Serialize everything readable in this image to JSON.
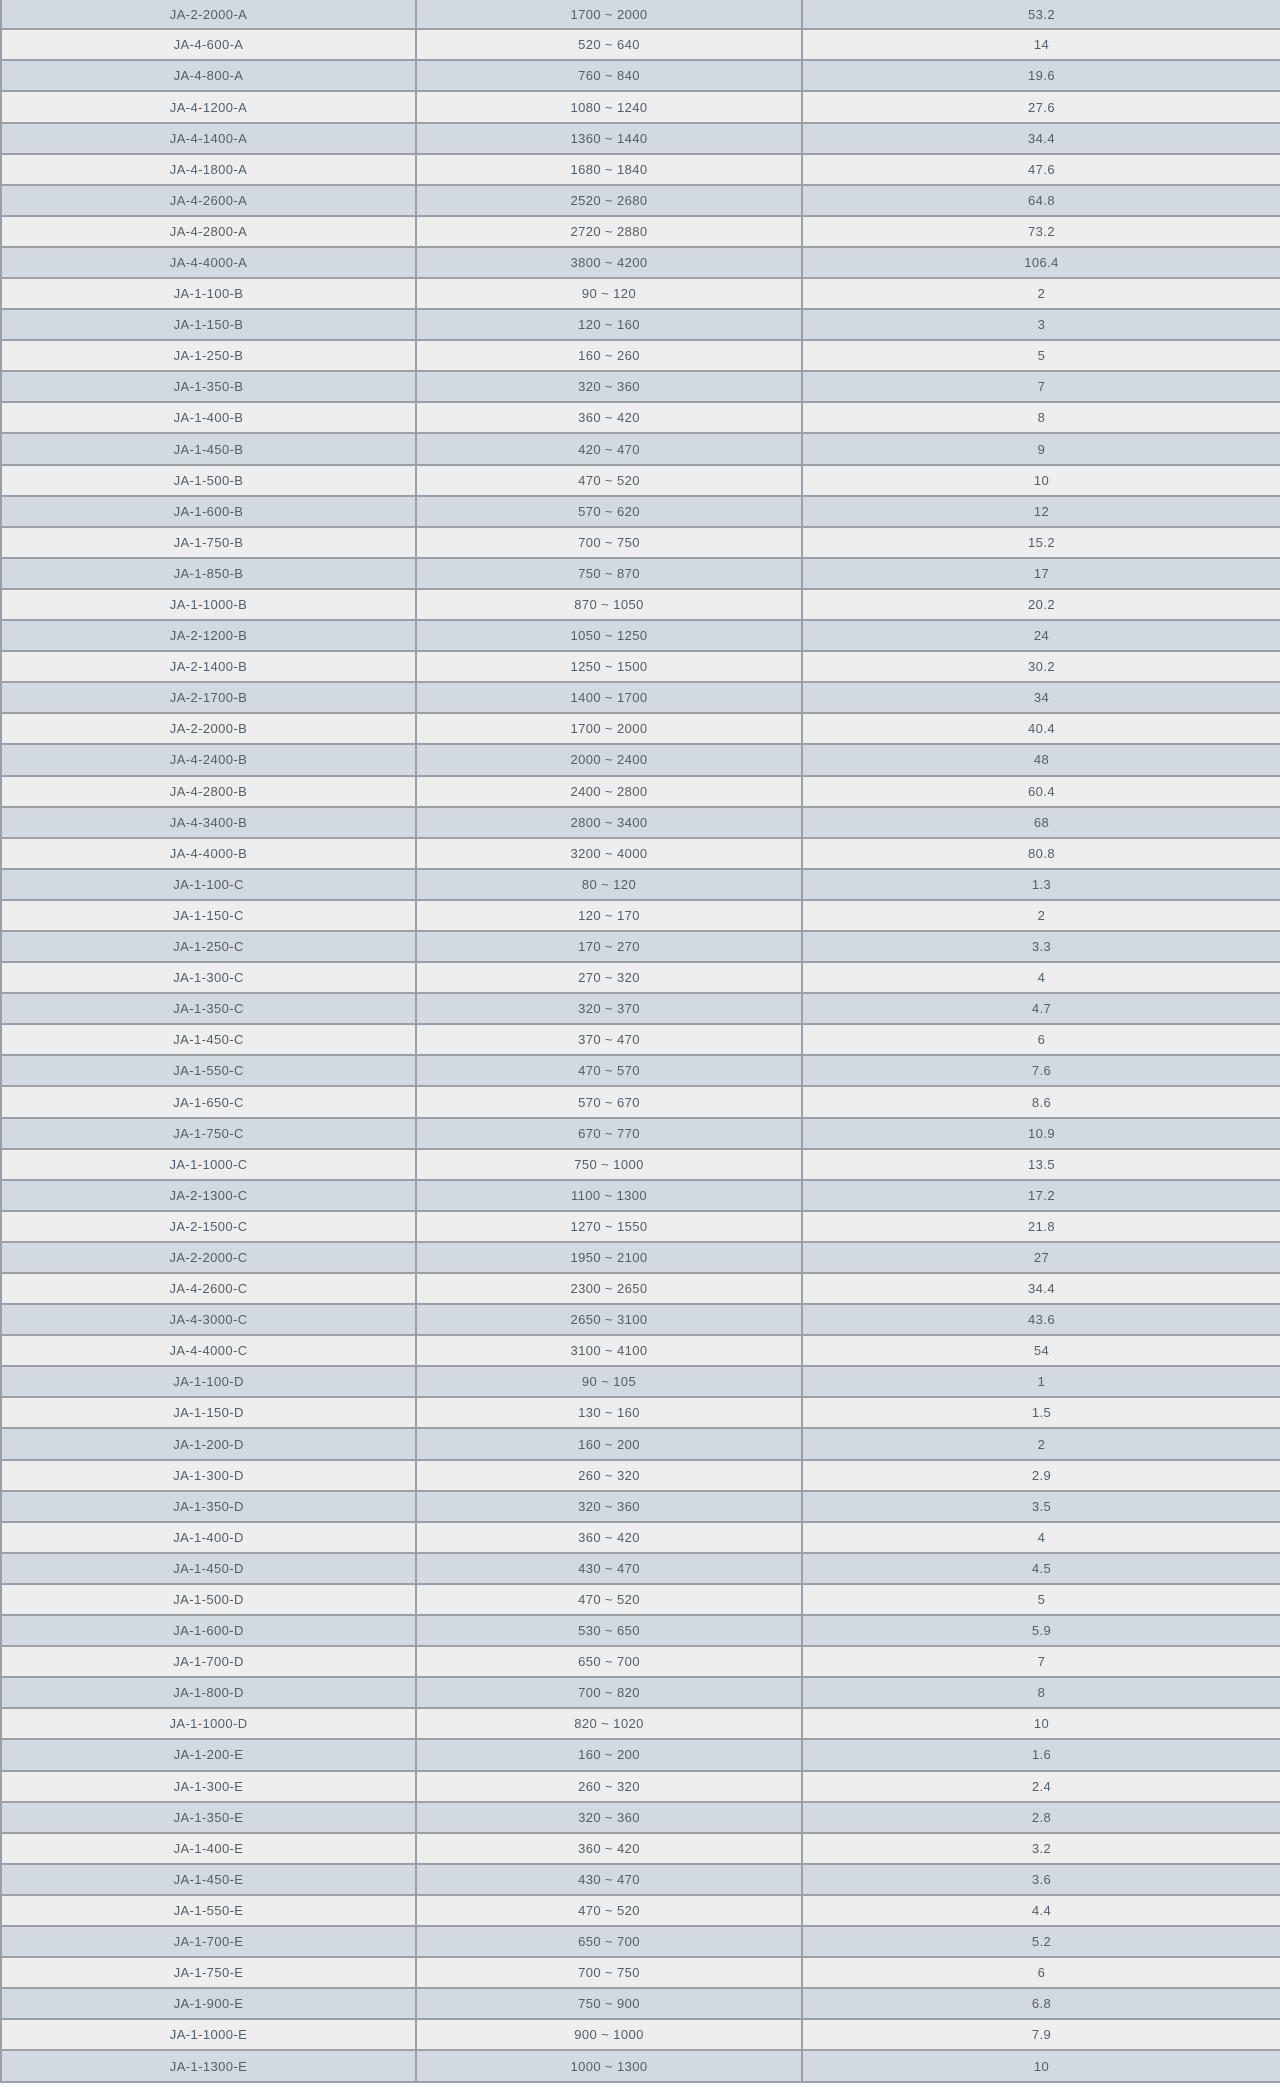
{
  "colors": {
    "row_odd_bg": "#d3d9e0",
    "row_even_bg": "#eeeeee",
    "border": "#9aa0a5",
    "text": "#565d64"
  },
  "table": {
    "rows": [
      [
        "JA-2-2000-A",
        "1700 ~ 2000",
        "53.2"
      ],
      [
        "JA-4-600-A",
        "520 ~ 640",
        "14"
      ],
      [
        "JA-4-800-A",
        "760 ~ 840",
        "19.6"
      ],
      [
        "JA-4-1200-A",
        "1080 ~ 1240",
        "27.6"
      ],
      [
        "JA-4-1400-A",
        "1360 ~ 1440",
        "34.4"
      ],
      [
        "JA-4-1800-A",
        "1680 ~ 1840",
        "47.6"
      ],
      [
        "JA-4-2600-A",
        "2520 ~ 2680",
        "64.8"
      ],
      [
        "JA-4-2800-A",
        "2720 ~ 2880",
        "73.2"
      ],
      [
        "JA-4-4000-A",
        "3800 ~ 4200",
        "106.4"
      ],
      [
        "JA-1-100-B",
        "90 ~ 120",
        "2"
      ],
      [
        "JA-1-150-B",
        "120 ~ 160",
        "3"
      ],
      [
        "JA-1-250-B",
        "160 ~ 260",
        "5"
      ],
      [
        "JA-1-350-B",
        "320 ~ 360",
        "7"
      ],
      [
        "JA-1-400-B",
        "360 ~ 420",
        "8"
      ],
      [
        "JA-1-450-B",
        "420 ~ 470",
        "9"
      ],
      [
        "JA-1-500-B",
        "470 ~ 520",
        "10"
      ],
      [
        "JA-1-600-B",
        "570 ~ 620",
        "12"
      ],
      [
        "JA-1-750-B",
        "700 ~ 750",
        "15.2"
      ],
      [
        "JA-1-850-B",
        "750 ~ 870",
        "17"
      ],
      [
        "JA-1-1000-B",
        "870 ~ 1050",
        "20.2"
      ],
      [
        "JA-2-1200-B",
        "1050 ~ 1250",
        "24"
      ],
      [
        "JA-2-1400-B",
        "1250 ~ 1500",
        "30.2"
      ],
      [
        "JA-2-1700-B",
        "1400 ~ 1700",
        "34"
      ],
      [
        "JA-2-2000-B",
        "1700 ~ 2000",
        "40.4"
      ],
      [
        "JA-4-2400-B",
        "2000 ~ 2400",
        "48"
      ],
      [
        "JA-4-2800-B",
        "2400 ~ 2800",
        "60.4"
      ],
      [
        "JA-4-3400-B",
        "2800 ~ 3400",
        "68"
      ],
      [
        "JA-4-4000-B",
        "3200 ~ 4000",
        "80.8"
      ],
      [
        "JA-1-100-C",
        "80 ~ 120",
        "1.3"
      ],
      [
        "JA-1-150-C",
        "120 ~ 170",
        "2"
      ],
      [
        "JA-1-250-C",
        "170 ~ 270",
        "3.3"
      ],
      [
        "JA-1-300-C",
        "270 ~ 320",
        "4"
      ],
      [
        "JA-1-350-C",
        "320 ~ 370",
        "4.7"
      ],
      [
        "JA-1-450-C",
        "370 ~ 470",
        "6"
      ],
      [
        "JA-1-550-C",
        "470 ~ 570",
        "7.6"
      ],
      [
        "JA-1-650-C",
        "570 ~ 670",
        "8.6"
      ],
      [
        "JA-1-750-C",
        "670 ~ 770",
        "10.9"
      ],
      [
        "JA-1-1000-C",
        "750 ~ 1000",
        "13.5"
      ],
      [
        "JA-2-1300-C",
        "1100 ~ 1300",
        "17.2"
      ],
      [
        "JA-2-1500-C",
        "1270 ~ 1550",
        "21.8"
      ],
      [
        "JA-2-2000-C",
        "1950 ~ 2100",
        "27"
      ],
      [
        "JA-4-2600-C",
        "2300 ~ 2650",
        "34.4"
      ],
      [
        "JA-4-3000-C",
        "2650 ~ 3100",
        "43.6"
      ],
      [
        "JA-4-4000-C",
        "3100 ~ 4100",
        "54"
      ],
      [
        "JA-1-100-D",
        "90 ~ 105",
        "1"
      ],
      [
        "JA-1-150-D",
        "130 ~ 160",
        "1.5"
      ],
      [
        "JA-1-200-D",
        "160 ~ 200",
        "2"
      ],
      [
        "JA-1-300-D",
        "260 ~ 320",
        "2.9"
      ],
      [
        "JA-1-350-D",
        "320 ~ 360",
        "3.5"
      ],
      [
        "JA-1-400-D",
        "360 ~ 420",
        "4"
      ],
      [
        "JA-1-450-D",
        "430 ~ 470",
        "4.5"
      ],
      [
        "JA-1-500-D",
        "470 ~ 520",
        "5"
      ],
      [
        "JA-1-600-D",
        "530 ~ 650",
        "5.9"
      ],
      [
        "JA-1-700-D",
        "650 ~ 700",
        "7"
      ],
      [
        "JA-1-800-D",
        "700 ~ 820",
        "8"
      ],
      [
        "JA-1-1000-D",
        "820 ~ 1020",
        "10"
      ],
      [
        "JA-1-200-E",
        "160 ~ 200",
        "1.6"
      ],
      [
        "JA-1-300-E",
        "260 ~ 320",
        "2.4"
      ],
      [
        "JA-1-350-E",
        "320 ~ 360",
        "2.8"
      ],
      [
        "JA-1-400-E",
        "360 ~ 420",
        "3.2"
      ],
      [
        "JA-1-450-E",
        "430 ~ 470",
        "3.6"
      ],
      [
        "JA-1-550-E",
        "470 ~ 520",
        "4.4"
      ],
      [
        "JA-1-700-E",
        "650 ~ 700",
        "5.2"
      ],
      [
        "JA-1-750-E",
        "700 ~ 750",
        "6"
      ],
      [
        "JA-1-900-E",
        "750 ~ 900",
        "6.8"
      ],
      [
        "JA-1-1000-E",
        "900 ~ 1000",
        "7.9"
      ],
      [
        "JA-1-1300-E",
        "1000 ~ 1300",
        "10"
      ]
    ]
  }
}
